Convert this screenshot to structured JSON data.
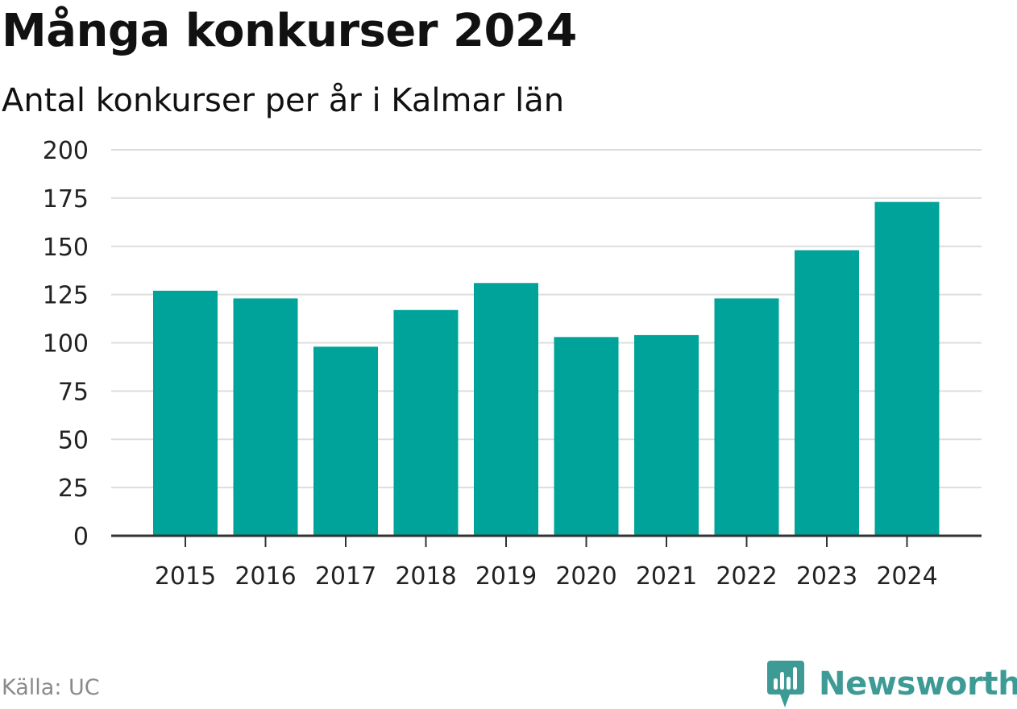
{
  "chart_data": {
    "type": "bar",
    "title": "Många konkurser 2024",
    "subtitle": "Antal konkurser per år i Kalmar län",
    "xlabel": "",
    "ylabel": "",
    "categories": [
      "2015",
      "2016",
      "2017",
      "2018",
      "2019",
      "2020",
      "2021",
      "2022",
      "2023",
      "2024"
    ],
    "values": [
      127,
      123,
      98,
      117,
      131,
      103,
      104,
      123,
      148,
      173
    ],
    "ylim": [
      0,
      200
    ],
    "yticks": [
      "0",
      "25",
      "50",
      "75",
      "100",
      "125",
      "150",
      "175",
      "200"
    ],
    "grid": true,
    "bar_color": "#00a39a",
    "grid_color": "#dddddd",
    "axis_color": "#333333"
  },
  "source": "Källa: UC",
  "logo": {
    "text": "Newsworthy",
    "icon": "newsworthy-logo-icon",
    "color": "#3d9a95"
  }
}
